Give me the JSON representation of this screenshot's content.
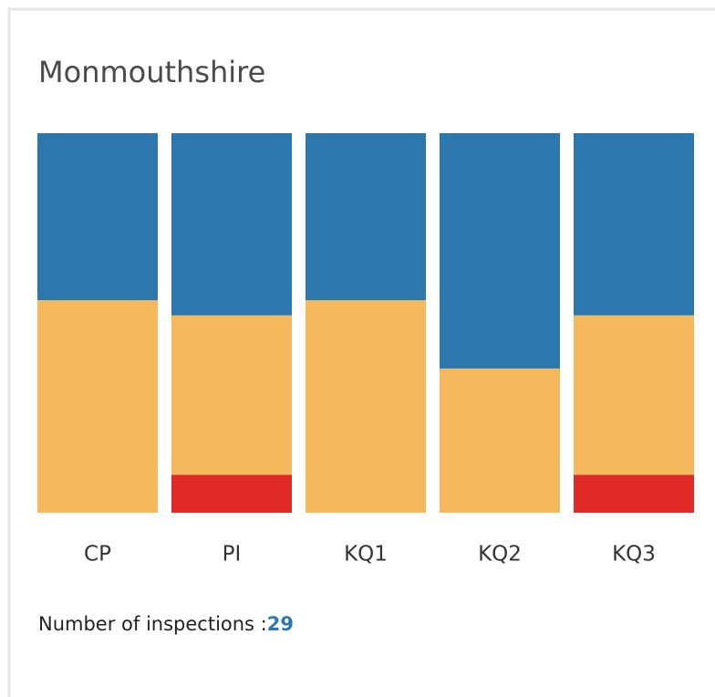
{
  "chart_data": {
    "type": "stacked_bar",
    "title": "Monmouthshire",
    "categories": [
      "CP",
      "PI",
      "KQ1",
      "KQ2",
      "KQ3"
    ],
    "series": [
      {
        "color": "#e02a27",
        "values": [
          0,
          10,
          0,
          0,
          10
        ]
      },
      {
        "color": "#f5b85c",
        "values": [
          56,
          42,
          56,
          38,
          42
        ]
      },
      {
        "color": "#2c77ae",
        "values": [
          44,
          48,
          44,
          62,
          48
        ]
      }
    ],
    "ylim": [
      0,
      100
    ]
  },
  "footer": {
    "label": "Number of inspections :",
    "value": 29
  }
}
